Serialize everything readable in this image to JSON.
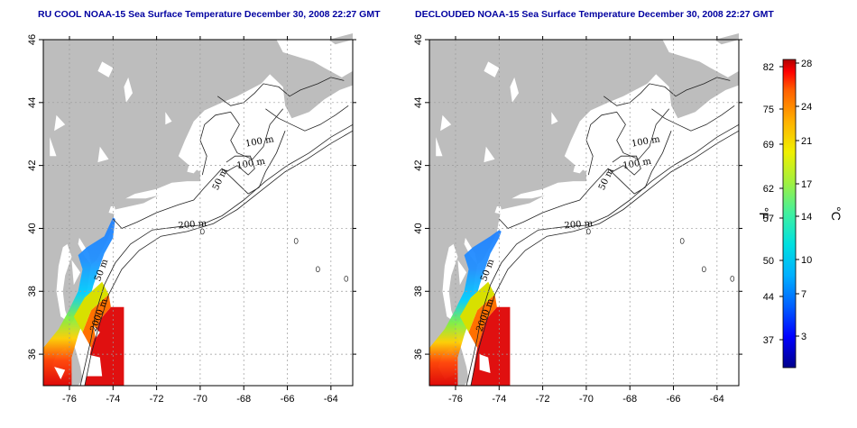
{
  "titles": {
    "left": "RU COOL NOAA-15 Sea Surface Temperature December 30, 2008 22:27 GMT",
    "right": "DECLOUDED NOAA-15 Sea Surface Temperature December 30, 2008 22:27 GMT"
  },
  "axes": {
    "lon_ticks": [
      "-76",
      "-74",
      "-72",
      "-70",
      "-68",
      "-66",
      "-64"
    ],
    "lat_ticks": [
      "36",
      "38",
      "40",
      "42",
      "44",
      "46"
    ],
    "lon_range": [
      -77.2,
      -63.0
    ],
    "lat_range": [
      35.0,
      46.0
    ]
  },
  "contour_labels": [
    "100 m",
    "100 m",
    "50 m",
    "200 m",
    "50 m",
    "2000 m"
  ],
  "colorbar": {
    "fahrenheit_label": "°F",
    "celsius_label": "°C",
    "fahrenheit_ticks": [
      "82",
      "75",
      "69",
      "62",
      "57",
      "50",
      "44",
      "37"
    ],
    "celsius_ticks": [
      "28",
      "24",
      "21",
      "17",
      "14",
      "10",
      "7",
      "3"
    ],
    "colors": [
      "#00008b",
      "#0000ff",
      "#0060ff",
      "#00b0ff",
      "#00e0e0",
      "#40f0a0",
      "#a0f040",
      "#f0f000",
      "#ffb000",
      "#ff6000",
      "#ff0000",
      "#b00000"
    ]
  },
  "colors": {
    "land": "#bdbdbd",
    "title": "#0000a0",
    "grid": "#9a9a9a"
  }
}
